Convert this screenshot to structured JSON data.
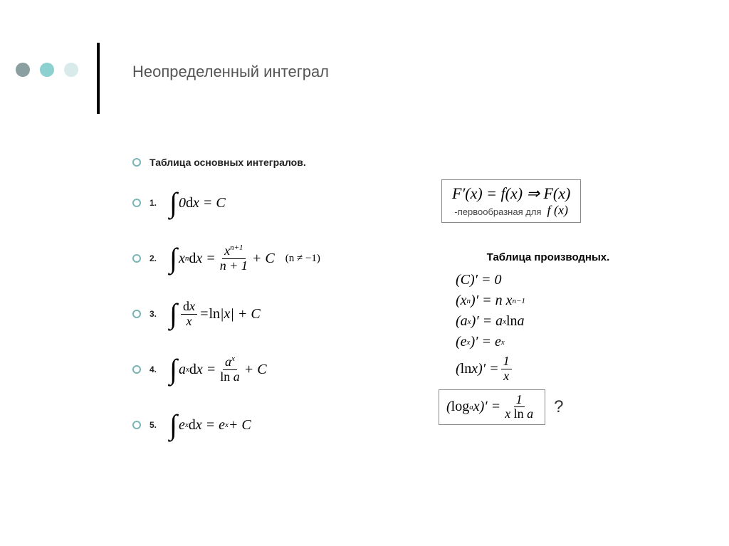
{
  "dots": {
    "colors": [
      "#8aa0a0",
      "#8cd0d0",
      "#d8eaea"
    ]
  },
  "title": "Неопределенный интеграл",
  "left": {
    "heading": "Таблица основных интегралов.",
    "items": [
      {
        "num": "1.",
        "html": "<span class='intg'>∫</span> 0<span class='plain'>d</span>x = C"
      },
      {
        "num": "2.",
        "html": "<span class='intg'>∫</span> x<sup>n</sup><span class='plain'>d</span>x = <span class='frac'><span class='n'>x<sup>n+1</sup></span><span class='d'>n + 1</span></span> + C &nbsp;&nbsp; <span class='plain' style='font-size:15px'>(n ≠ −1)</span>"
      },
      {
        "num": "3.",
        "html": "<span class='intg'>∫</span> <span class='frac'><span class='n'><span class='plain'>d</span>x</span><span class='d'>x</span></span> = <span class='plain'>ln</span>|x| + C"
      },
      {
        "num": "4.",
        "html": "<span class='intg'>∫</span> a<sup>x</sup><span class='plain'>d</span>x = <span class='frac'><span class='n'>a<sup>x</sup></span><span class='d'><span class='plain'>ln</span> a</span></span> + C"
      },
      {
        "num": "5.",
        "html": "<span class='intg'>∫</span> e<sup>x</sup><span class='plain'>d</span>x = e<sup>x</sup> + C"
      }
    ]
  },
  "right": {
    "box_line": "F′(x) = f(x)  ⇒  F(x)",
    "box_sub": "-первообразная для",
    "box_sub_math": "f (x)",
    "deriv_title": "Таблица производных.",
    "derivs": [
      "(C)′ = 0",
      "(x<sup>n</sup>)′ = n x<sup>n−1</sup>",
      "(a<sup>x</sup>)′ = a<sup>x</sup> <span class='plain'>ln</span> a",
      "(e<sup>x</sup>)′ = e<sup>x</sup>",
      "(<span class='plain'>ln</span> x)′ = <span class='frac'><span class='n'>1</span><span class='d'>x</span></span>"
    ],
    "boxed_last": "(<span class='plain'>log</span><sub>a</sub> x)′ = <span class='frac'><span class='n'>1</span><span class='d'>x <span class='plain'>ln</span> a</span></span>",
    "question": "?"
  }
}
